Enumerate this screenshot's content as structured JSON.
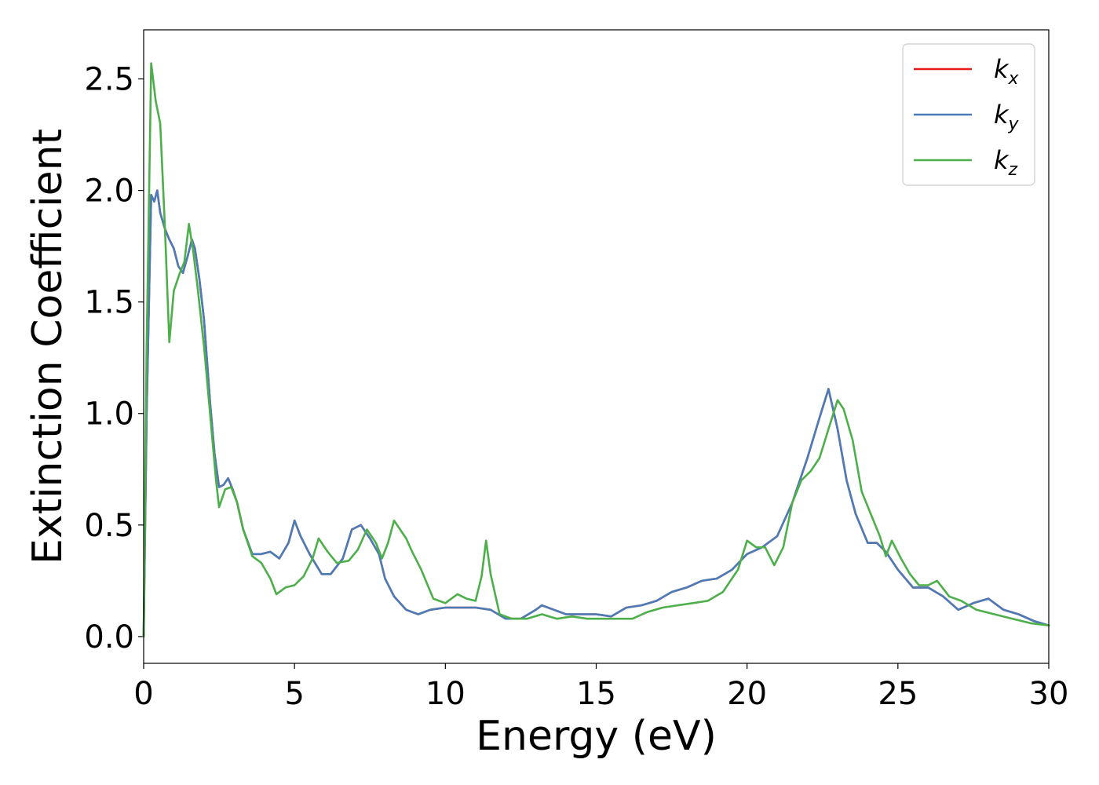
{
  "chart_data": {
    "type": "line",
    "title": "",
    "xlabel": "Energy (eV)",
    "ylabel": "Extinction Coefficient",
    "xlim": [
      0,
      30
    ],
    "ylim": [
      -0.12,
      2.72
    ],
    "xticks": [
      0,
      5,
      10,
      15,
      20,
      25,
      30
    ],
    "xtick_labels": [
      "0",
      "5",
      "10",
      "15",
      "20",
      "25",
      "30"
    ],
    "yticks": [
      0.0,
      0.5,
      1.0,
      1.5,
      2.0,
      2.5
    ],
    "ytick_labels": [
      "0.0",
      "0.5",
      "1.0",
      "1.5",
      "2.0",
      "2.5"
    ],
    "grid": false,
    "legend_position": "top-right",
    "series": [
      {
        "name": "k",
        "subscript": "x",
        "color": "#e41a1c",
        "x": [
          0,
          0.1,
          0.25,
          0.35,
          0.45,
          0.55,
          0.7,
          0.85,
          1.0,
          1.15,
          1.3,
          1.45,
          1.6,
          1.7,
          1.85,
          2.0,
          2.2,
          2.35,
          2.5,
          2.65,
          2.8,
          2.95,
          3.1,
          3.3,
          3.6,
          3.9,
          4.2,
          4.5,
          4.8,
          5.0,
          5.2,
          5.5,
          5.9,
          6.2,
          6.6,
          6.9,
          7.2,
          7.5,
          7.8,
          8.0,
          8.3,
          8.7,
          9.1,
          9.5,
          10.0,
          10.5,
          11.0,
          11.5,
          12.0,
          12.5,
          13.0,
          13.2,
          13.6,
          14.0,
          14.5,
          15.0,
          15.5,
          16.0,
          16.5,
          17.0,
          17.5,
          18.0,
          18.5,
          19.0,
          19.5,
          20.0,
          20.5,
          21.0,
          21.5,
          22.0,
          22.4,
          22.7,
          23.0,
          23.3,
          23.6,
          24.0,
          24.3,
          24.6,
          25.0,
          25.5,
          26.0,
          26.5,
          27.0,
          27.5,
          28.0,
          28.5,
          29.0,
          29.5,
          30.0
        ],
        "values": [
          0.0,
          1.0,
          1.98,
          1.95,
          2.0,
          1.9,
          1.83,
          1.78,
          1.74,
          1.66,
          1.63,
          1.7,
          1.78,
          1.74,
          1.6,
          1.42,
          1.05,
          0.82,
          0.67,
          0.68,
          0.71,
          0.66,
          0.6,
          0.48,
          0.37,
          0.37,
          0.38,
          0.35,
          0.42,
          0.52,
          0.45,
          0.37,
          0.28,
          0.28,
          0.35,
          0.48,
          0.5,
          0.44,
          0.37,
          0.26,
          0.18,
          0.12,
          0.1,
          0.12,
          0.13,
          0.13,
          0.13,
          0.12,
          0.08,
          0.08,
          0.12,
          0.14,
          0.12,
          0.1,
          0.1,
          0.1,
          0.09,
          0.13,
          0.14,
          0.16,
          0.2,
          0.22,
          0.25,
          0.26,
          0.3,
          0.37,
          0.4,
          0.45,
          0.6,
          0.8,
          0.98,
          1.11,
          0.93,
          0.7,
          0.55,
          0.42,
          0.42,
          0.38,
          0.3,
          0.22,
          0.22,
          0.18,
          0.12,
          0.15,
          0.17,
          0.12,
          0.1,
          0.07,
          0.05
        ]
      },
      {
        "name": "k",
        "subscript": "y",
        "color": "#4a7db8",
        "x": [
          0,
          0.1,
          0.25,
          0.35,
          0.45,
          0.55,
          0.7,
          0.85,
          1.0,
          1.15,
          1.3,
          1.45,
          1.6,
          1.7,
          1.85,
          2.0,
          2.2,
          2.35,
          2.5,
          2.65,
          2.8,
          2.95,
          3.1,
          3.3,
          3.6,
          3.9,
          4.2,
          4.5,
          4.8,
          5.0,
          5.2,
          5.5,
          5.9,
          6.2,
          6.6,
          6.9,
          7.2,
          7.5,
          7.8,
          8.0,
          8.3,
          8.7,
          9.1,
          9.5,
          10.0,
          10.5,
          11.0,
          11.5,
          12.0,
          12.5,
          13.0,
          13.2,
          13.6,
          14.0,
          14.5,
          15.0,
          15.5,
          16.0,
          16.5,
          17.0,
          17.5,
          18.0,
          18.5,
          19.0,
          19.5,
          20.0,
          20.5,
          21.0,
          21.5,
          22.0,
          22.4,
          22.7,
          23.0,
          23.3,
          23.6,
          24.0,
          24.3,
          24.6,
          25.0,
          25.5,
          26.0,
          26.5,
          27.0,
          27.5,
          28.0,
          28.5,
          29.0,
          29.5,
          30.0
        ],
        "values": [
          0.0,
          1.0,
          1.98,
          1.95,
          2.0,
          1.9,
          1.83,
          1.78,
          1.74,
          1.66,
          1.63,
          1.7,
          1.78,
          1.74,
          1.6,
          1.42,
          1.05,
          0.82,
          0.67,
          0.68,
          0.71,
          0.66,
          0.6,
          0.48,
          0.37,
          0.37,
          0.38,
          0.35,
          0.42,
          0.52,
          0.45,
          0.37,
          0.28,
          0.28,
          0.35,
          0.48,
          0.5,
          0.44,
          0.37,
          0.26,
          0.18,
          0.12,
          0.1,
          0.12,
          0.13,
          0.13,
          0.13,
          0.12,
          0.08,
          0.08,
          0.12,
          0.14,
          0.12,
          0.1,
          0.1,
          0.1,
          0.09,
          0.13,
          0.14,
          0.16,
          0.2,
          0.22,
          0.25,
          0.26,
          0.3,
          0.37,
          0.4,
          0.45,
          0.6,
          0.8,
          0.98,
          1.11,
          0.93,
          0.7,
          0.55,
          0.42,
          0.42,
          0.38,
          0.3,
          0.22,
          0.22,
          0.18,
          0.12,
          0.15,
          0.17,
          0.12,
          0.1,
          0.07,
          0.05
        ]
      },
      {
        "name": "k",
        "subscript": "z",
        "color": "#4daf4a",
        "x": [
          0,
          0.1,
          0.25,
          0.4,
          0.55,
          0.7,
          0.85,
          1.0,
          1.2,
          1.35,
          1.5,
          1.65,
          1.8,
          2.0,
          2.2,
          2.4,
          2.5,
          2.7,
          2.9,
          3.1,
          3.3,
          3.6,
          3.9,
          4.2,
          4.4,
          4.7,
          5.0,
          5.3,
          5.6,
          5.8,
          6.1,
          6.4,
          6.8,
          7.1,
          7.4,
          7.7,
          7.9,
          8.1,
          8.3,
          8.5,
          8.7,
          8.9,
          9.2,
          9.6,
          10.0,
          10.4,
          10.7,
          11.0,
          11.2,
          11.35,
          11.5,
          11.8,
          12.2,
          12.7,
          13.2,
          13.7,
          14.2,
          14.7,
          15.2,
          15.7,
          16.2,
          16.7,
          17.2,
          17.7,
          18.2,
          18.7,
          19.2,
          19.7,
          20.0,
          20.3,
          20.6,
          20.9,
          21.2,
          21.5,
          21.8,
          22.1,
          22.4,
          22.7,
          23.0,
          23.2,
          23.5,
          23.8,
          24.1,
          24.4,
          24.6,
          24.8,
          25.1,
          25.4,
          25.7,
          26.0,
          26.3,
          26.7,
          27.1,
          27.6,
          28.2,
          28.8,
          29.4,
          30.0
        ],
        "values": [
          0.0,
          1.3,
          2.57,
          2.4,
          2.3,
          1.85,
          1.32,
          1.55,
          1.63,
          1.68,
          1.85,
          1.72,
          1.55,
          1.3,
          1.0,
          0.7,
          0.58,
          0.66,
          0.67,
          0.6,
          0.48,
          0.36,
          0.33,
          0.26,
          0.19,
          0.22,
          0.23,
          0.27,
          0.35,
          0.44,
          0.38,
          0.33,
          0.34,
          0.39,
          0.48,
          0.42,
          0.35,
          0.42,
          0.52,
          0.48,
          0.44,
          0.38,
          0.3,
          0.17,
          0.15,
          0.19,
          0.17,
          0.16,
          0.27,
          0.43,
          0.28,
          0.1,
          0.08,
          0.08,
          0.1,
          0.08,
          0.09,
          0.08,
          0.08,
          0.08,
          0.08,
          0.11,
          0.13,
          0.14,
          0.15,
          0.16,
          0.2,
          0.3,
          0.43,
          0.4,
          0.4,
          0.32,
          0.4,
          0.6,
          0.7,
          0.74,
          0.8,
          0.93,
          1.06,
          1.02,
          0.88,
          0.65,
          0.55,
          0.45,
          0.36,
          0.43,
          0.35,
          0.28,
          0.23,
          0.23,
          0.25,
          0.18,
          0.16,
          0.12,
          0.1,
          0.08,
          0.06,
          0.05
        ]
      }
    ]
  }
}
